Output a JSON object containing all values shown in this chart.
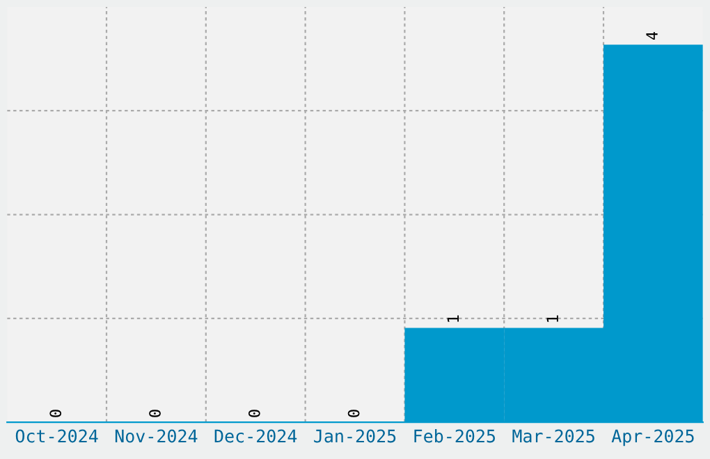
{
  "chart_data": {
    "type": "bar",
    "categories": [
      "Oct-2024",
      "Nov-2024",
      "Dec-2024",
      "Jan-2025",
      "Feb-2025",
      "Mar-2025",
      "Apr-2025"
    ],
    "values": [
      0,
      0,
      0,
      0,
      1,
      1,
      4
    ],
    "color": "#0099cc",
    "ylim": [
      0,
      4.4
    ],
    "yticks": [
      {
        "value": 1.1,
        "label": null
      },
      {
        "value": 2.2,
        "label": null
      },
      {
        "value": 3.3,
        "label": null
      }
    ],
    "tick_labels": "x",
    "grid": true,
    "data_labels": true
  }
}
